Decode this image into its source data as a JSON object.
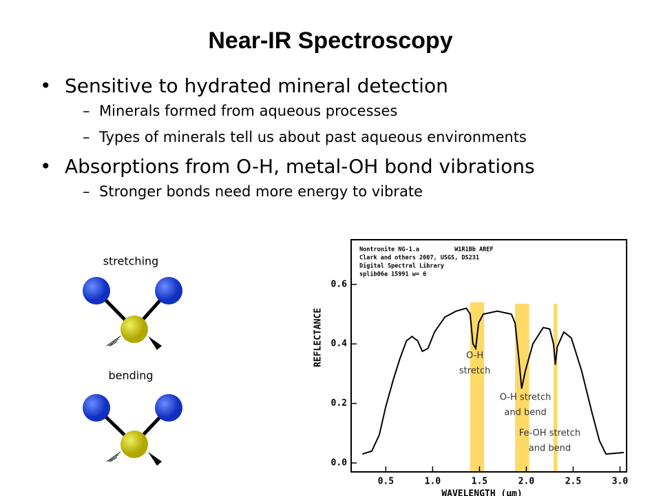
{
  "title": "Near-IR Spectroscopy",
  "bullets": [
    {
      "text": "Sensitive to hydrated mineral detection",
      "sub": [
        "Minerals formed from aqueous processes",
        "Types of minerals tell us about past aqueous environments"
      ]
    },
    {
      "text": "Absorptions from O-H, metal-OH bond vibrations",
      "sub": [
        "Stronger bonds need more energy to vibrate"
      ]
    }
  ],
  "molecules": [
    "stretching",
    "bending"
  ],
  "chart_data": {
    "type": "line",
    "header": [
      "Nontronite NG-1.a          W1R1Bb AREF",
      "Clark and others 2007, USGS, DS231",
      "Digital Spectral Library",
      "splib06a 15991 w= 6"
    ],
    "xlabel": "WAVELENGTH (μm)",
    "ylabel": "REFLECTANCE",
    "xlim": [
      0.13,
      3.07
    ],
    "ylim": [
      -0.03,
      0.75
    ],
    "xticks": [
      0.5,
      {
        "value": 1,
        "label": "1.0"
      },
      1.5,
      {
        "value": 2,
        "label": "2.0"
      },
      2.5,
      {
        "value": 3,
        "label": "3.0"
      }
    ],
    "yticks": [
      {
        "value": 0,
        "label": "0.0"
      },
      0.2,
      0.4,
      0.6
    ],
    "color": "#000000",
    "x": [
      0.25,
      0.35,
      0.43,
      0.5,
      0.58,
      0.65,
      0.72,
      0.78,
      0.84,
      0.89,
      0.95,
      1.02,
      1.13,
      1.25,
      1.36,
      1.4,
      1.43,
      1.46,
      1.49,
      1.54,
      1.69,
      1.84,
      1.88,
      1.92,
      1.95,
      1.99,
      2.07,
      2.18,
      2.25,
      2.29,
      2.31,
      2.33,
      2.4,
      2.48,
      2.59,
      2.7,
      2.78,
      2.85,
      3.04
    ],
    "y": [
      0.03,
      0.04,
      0.094,
      0.19,
      0.28,
      0.35,
      0.41,
      0.425,
      0.41,
      0.375,
      0.385,
      0.44,
      0.49,
      0.51,
      0.52,
      0.5,
      0.4,
      0.385,
      0.47,
      0.5,
      0.51,
      0.5,
      0.47,
      0.35,
      0.25,
      0.31,
      0.4,
      0.455,
      0.45,
      0.4,
      0.33,
      0.39,
      0.44,
      0.42,
      0.31,
      0.17,
      0.075,
      0.03,
      0.035
    ],
    "bands": [
      {
        "range": [
          1.4,
          1.55
        ],
        "top": 0.54,
        "color": "#ffd966"
      },
      {
        "range": [
          1.88,
          2.03
        ],
        "top": 0.535,
        "color": "#ffd966"
      },
      {
        "range": [
          2.29,
          2.33
        ],
        "top": 0.535,
        "color": "#ffd966"
      }
    ],
    "annotations": [
      {
        "lines": [
          "O-H",
          "stretch"
        ],
        "x": 1.45,
        "y": 0.36
      },
      {
        "lines": [
          "O-H stretch",
          "and bend"
        ],
        "x": 1.99,
        "y": 0.22
      },
      {
        "lines": [
          "Fe-OH stretch",
          "and bend"
        ],
        "x": 2.25,
        "y": 0.1
      }
    ]
  }
}
